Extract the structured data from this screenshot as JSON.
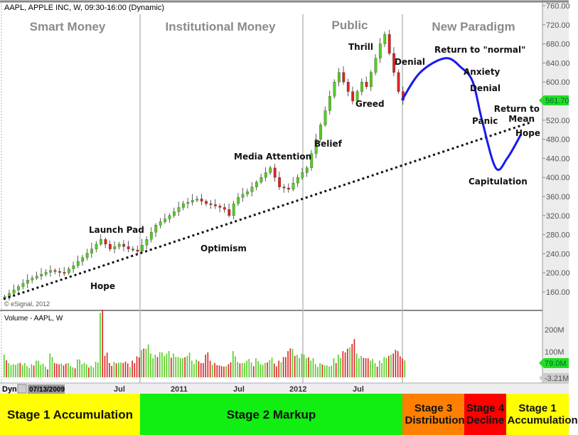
{
  "header": {
    "title": "AAPL, APPLE INC, W, 09:30-16:00 (Dynamic)",
    "copyright": "© eSignal, 2012"
  },
  "phases": [
    "Smart Money",
    "Institutional Money",
    "Public",
    "New Paradigm"
  ],
  "annotations": {
    "hope1": "Hope",
    "launch_pad": "Launch Pad",
    "optimism": "Optimism",
    "media_attention": "Media Attention",
    "belief": "Belief",
    "thrill": "Thrill",
    "greed": "Greed",
    "denial1": "Denial",
    "return_normal": "Return to \"normal\"",
    "anxiety": "Anxiety",
    "denial2": "Denial",
    "panic": "Panic",
    "capitulation": "Capitulation",
    "return_mean_1": "Return to",
    "return_mean_2": "Mean",
    "hope2": "Hope"
  },
  "volume_pane": {
    "title": "Volume - AAPL, W",
    "ticks": [
      "200M",
      "100M"
    ],
    "last_value": "79.0M",
    "min_value": "-3.21M"
  },
  "date_axis": {
    "prefix": "Dyn",
    "start_date": "07/13/2009",
    "ticks": [
      "Jul",
      "2011",
      "Jul",
      "2012",
      "Jul"
    ]
  },
  "stages": [
    "Stage 1 Accumulation",
    "Stage 2 Markup",
    "Stage 3 Distribution",
    "Stage 4 Decline",
    "Stage 1 Accumulation"
  ],
  "colors": {
    "up": "#55cc22",
    "down": "#dd2222",
    "projection": "#1a1aee",
    "last_price_badge": "#22dd22",
    "stage1": "#ffff00",
    "stage2": "#11ee11",
    "stage3": "#ff7f00",
    "stage4": "#ff0000"
  },
  "chart_data": {
    "type": "candlestick",
    "title": "AAPL, APPLE INC, W, 09:30-16:00 (Dynamic)",
    "ylim": [
      140,
      770
    ],
    "y_ticks": [
      "760.00",
      "720.00",
      "680.00",
      "640.00",
      "600.00",
      "520.00",
      "480.00",
      "440.00",
      "400.00",
      "360.00",
      "320.00",
      "280.00",
      "240.00",
      "200.00",
      "160.00"
    ],
    "last_price": "561.70",
    "x_start": "07/13/2009",
    "x_step_weeks": 2,
    "closes": [
      150,
      157,
      164,
      171,
      178,
      185,
      189,
      193,
      197,
      201,
      205,
      203,
      201,
      200,
      208,
      215,
      224,
      232,
      241,
      250,
      260,
      270,
      260,
      250,
      255,
      260,
      255,
      250,
      248,
      245,
      258,
      270,
      285,
      300,
      307,
      313,
      320,
      328,
      337,
      345,
      348,
      352,
      355,
      350,
      345,
      343,
      340,
      337,
      333,
      320,
      345,
      358,
      365,
      370,
      380,
      390,
      400,
      410,
      420,
      400,
      380,
      378,
      375,
      388,
      400,
      410,
      420,
      450,
      480,
      510,
      540,
      570,
      600,
      620,
      600,
      580,
      560,
      580,
      600,
      590,
      620,
      650,
      680,
      700,
      660,
      620,
      580,
      561.7
    ],
    "volumes_m": [
      95,
      60,
      55,
      58,
      52,
      48,
      55,
      70,
      52,
      45,
      100,
      60,
      55,
      50,
      60,
      42,
      75,
      55,
      55,
      48,
      65,
      270,
      90,
      60,
      65,
      62,
      60,
      58,
      70,
      88,
      115,
      120,
      100,
      95,
      105,
      90,
      110,
      100,
      85,
      80,
      90,
      70,
      75,
      60,
      95,
      70,
      60,
      50,
      45,
      55,
      110,
      65,
      60,
      70,
      62,
      80,
      55,
      60,
      72,
      58,
      70,
      85,
      110,
      120,
      95,
      100,
      80,
      70,
      55,
      60,
      50,
      45,
      80,
      95,
      110,
      120,
      140,
      100,
      90,
      80,
      70,
      60,
      70,
      85,
      90,
      100,
      110,
      79
    ],
    "projection": {
      "weeks": [
        174,
        182,
        193,
        200,
        205,
        209,
        215,
        220,
        226
      ],
      "prices": [
        561.7,
        620,
        650,
        630,
        600,
        520,
        420,
        440,
        490
      ]
    },
    "trendline": {
      "weeks": [
        0,
        230
      ],
      "prices": [
        145,
        515
      ]
    }
  }
}
